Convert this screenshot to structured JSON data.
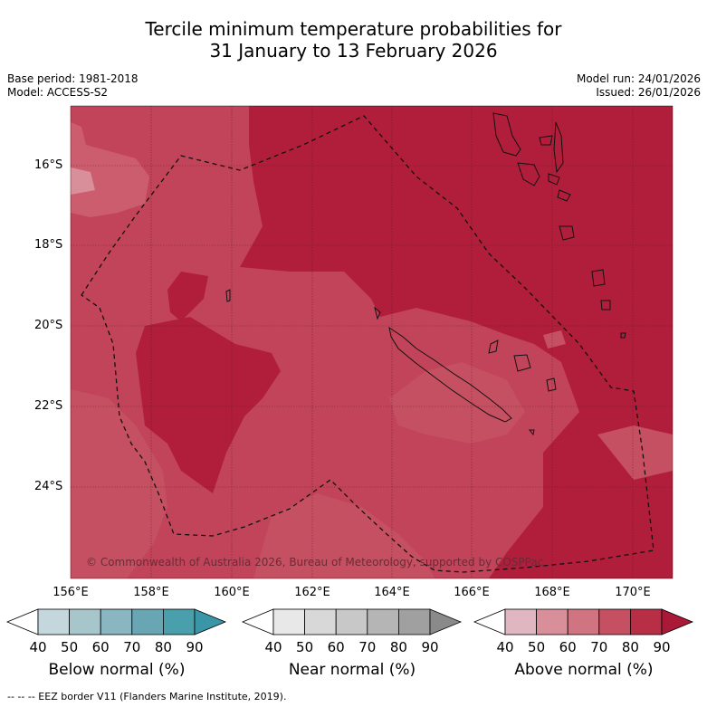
{
  "title_line1": "Tercile minimum temperature probabilities for",
  "title_line2": "31 January to 13 February 2026",
  "base_period": "Base period: 1981-2018",
  "model": "Model: ACCESS-S2",
  "model_run": "Model run: 24/01/2026",
  "issued": "Issued: 26/01/2026",
  "credit": "© Commonwealth of Australia 2026, Bureau of Meteorology, supported by COSPPac",
  "footnote": "-- -- -- EEZ border V11 (Flanders Marine Institute, 2019).",
  "lat_labels": [
    "16°S",
    "18°S",
    "20°S",
    "22°S",
    "24°S"
  ],
  "lon_labels": [
    "156°E",
    "158°E",
    "160°E",
    "162°E",
    "164°E",
    "166°E",
    "168°E",
    "170°E"
  ],
  "colorbars": [
    {
      "title": "Below normal (%)",
      "ticks": [
        "40",
        "50",
        "60",
        "70",
        "80",
        "90"
      ],
      "colors": [
        "#ffffff",
        "#c3d7dc",
        "#a7c6cc",
        "#89b6c0",
        "#69a6b3",
        "#4a9fad",
        "#3a96a6"
      ]
    },
    {
      "title": "Near normal (%)",
      "ticks": [
        "40",
        "50",
        "60",
        "70",
        "80",
        "90"
      ],
      "colors": [
        "#ffffff",
        "#e8e8e8",
        "#d8d8d8",
        "#c8c8c8",
        "#b5b5b5",
        "#a0a0a0",
        "#8a8a8a"
      ]
    },
    {
      "title": "Above normal (%)",
      "ticks": [
        "40",
        "50",
        "60",
        "70",
        "80",
        "90"
      ],
      "colors": [
        "#ffffff",
        "#e0b7c0",
        "#d98f9a",
        "#cf7480",
        "#c55062",
        "#b82e45",
        "#aa1a38"
      ]
    }
  ],
  "colors": {
    "above_80_90": "#b01e3b",
    "above_70_80": "#c2445a",
    "above_60_70": "#d07482",
    "coast": "#111111"
  }
}
